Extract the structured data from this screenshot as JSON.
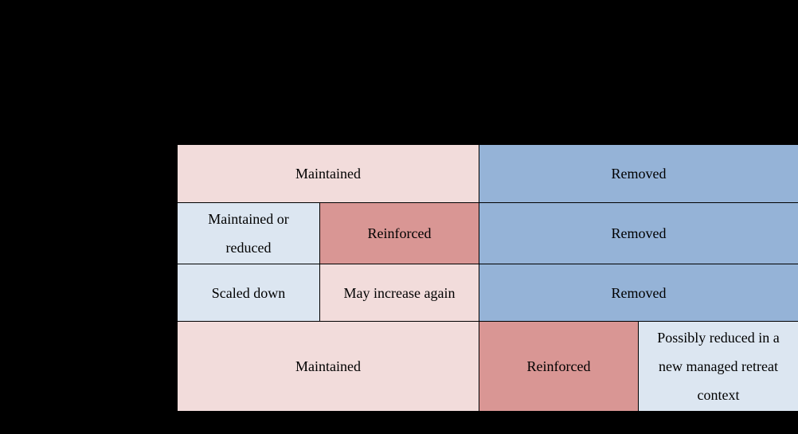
{
  "page": {
    "background_color": "#000000",
    "text_color": "#000000",
    "border_color": "#000000"
  },
  "palette": {
    "light_pink": "#f2dcdb",
    "salmon_red": "#d99694",
    "medium_blue": "#95b3d7",
    "light_blue": "#dce6f1"
  },
  "table": {
    "rows": [
      {
        "cells": [
          {
            "label": "Maintained",
            "bg": "#f2dcdb"
          },
          {
            "label": "Removed",
            "bg": "#95b3d7"
          }
        ]
      },
      {
        "cells": [
          {
            "label": "Maintained or reduced",
            "bg": "#dce6f1"
          },
          {
            "label": "Reinforced",
            "bg": "#d99694"
          },
          {
            "label": "Removed",
            "bg": "#95b3d7"
          }
        ]
      },
      {
        "cells": [
          {
            "label": "Scaled down",
            "bg": "#dce6f1"
          },
          {
            "label": "May increase again",
            "bg": "#f2dcdb"
          },
          {
            "label": "Removed",
            "bg": "#95b3d7"
          }
        ]
      },
      {
        "cells": [
          {
            "label": "Maintained",
            "bg": "#f2dcdb"
          },
          {
            "label": "Reinforced",
            "bg": "#d99694"
          },
          {
            "label": "Possibly reduced in a new managed retreat context",
            "bg": "#dce6f1"
          }
        ]
      }
    ]
  }
}
